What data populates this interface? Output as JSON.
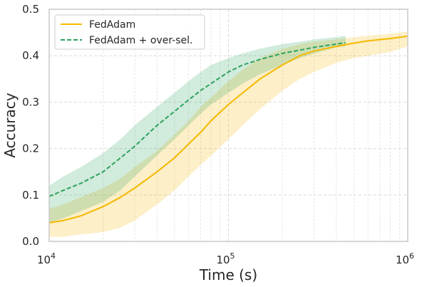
{
  "chart_data": {
    "type": "line",
    "xlabel": "Time (s)",
    "ylabel": "Accuracy",
    "xscale": "log",
    "xlim": [
      10000,
      1000000
    ],
    "ylim": [
      0,
      0.5
    ],
    "grid": true,
    "legend_position": "top-left",
    "x_major_ticks": [
      {
        "value": 10000,
        "base": "10",
        "exp": "4"
      },
      {
        "value": 100000,
        "base": "10",
        "exp": "5"
      },
      {
        "value": 1000000,
        "base": "10",
        "exp": "6"
      }
    ],
    "y_ticks": [
      {
        "value": 0.0,
        "label": "0.0"
      },
      {
        "value": 0.1,
        "label": "0.1"
      },
      {
        "value": 0.2,
        "label": "0.2"
      },
      {
        "value": 0.3,
        "label": "0.3"
      },
      {
        "value": 0.4,
        "label": "0.4"
      },
      {
        "value": 0.5,
        "label": "0.5"
      }
    ],
    "series": [
      {
        "name": "FedAdam",
        "color": "#f5b800",
        "line_style": "solid",
        "x": [
          10000,
          12000,
          15000,
          20000,
          25000,
          30000,
          40000,
          50000,
          60000,
          70000,
          80000,
          100000,
          120000,
          150000,
          200000,
          250000,
          300000,
          400000,
          500000,
          600000,
          800000,
          1000000
        ],
        "y": [
          0.04,
          0.045,
          0.055,
          0.075,
          0.095,
          0.115,
          0.15,
          0.18,
          0.21,
          0.235,
          0.26,
          0.295,
          0.32,
          0.35,
          0.38,
          0.4,
          0.41,
          0.42,
          0.427,
          0.432,
          0.437,
          0.442
        ],
        "lower": [
          0.01,
          0.01,
          0.015,
          0.02,
          0.03,
          0.045,
          0.08,
          0.11,
          0.14,
          0.165,
          0.185,
          0.22,
          0.25,
          0.285,
          0.325,
          0.35,
          0.365,
          0.385,
          0.395,
          0.4,
          0.408,
          0.42
        ],
        "upper": [
          0.07,
          0.08,
          0.095,
          0.115,
          0.135,
          0.16,
          0.195,
          0.23,
          0.26,
          0.29,
          0.31,
          0.345,
          0.37,
          0.395,
          0.415,
          0.425,
          0.43,
          0.435,
          0.44,
          0.443,
          0.447,
          0.452
        ]
      },
      {
        "name": "FedAdam + over-sel.",
        "color": "#2ca25f",
        "line_style": "dashed",
        "x": [
          10000,
          12000,
          15000,
          20000,
          25000,
          30000,
          40000,
          50000,
          60000,
          70000,
          80000,
          100000,
          120000,
          150000,
          200000,
          250000,
          300000,
          400000,
          450000
        ],
        "y": [
          0.097,
          0.11,
          0.125,
          0.15,
          0.18,
          0.205,
          0.25,
          0.28,
          0.305,
          0.325,
          0.34,
          0.365,
          0.38,
          0.392,
          0.405,
          0.412,
          0.418,
          0.425,
          0.428
        ],
        "lower": [
          0.04,
          0.05,
          0.065,
          0.085,
          0.11,
          0.14,
          0.185,
          0.22,
          0.25,
          0.275,
          0.295,
          0.32,
          0.34,
          0.36,
          0.38,
          0.395,
          0.405,
          0.418,
          0.42
        ],
        "upper": [
          0.12,
          0.14,
          0.16,
          0.19,
          0.22,
          0.25,
          0.29,
          0.32,
          0.345,
          0.365,
          0.38,
          0.395,
          0.405,
          0.415,
          0.425,
          0.43,
          0.435,
          0.44,
          0.443
        ]
      }
    ]
  }
}
